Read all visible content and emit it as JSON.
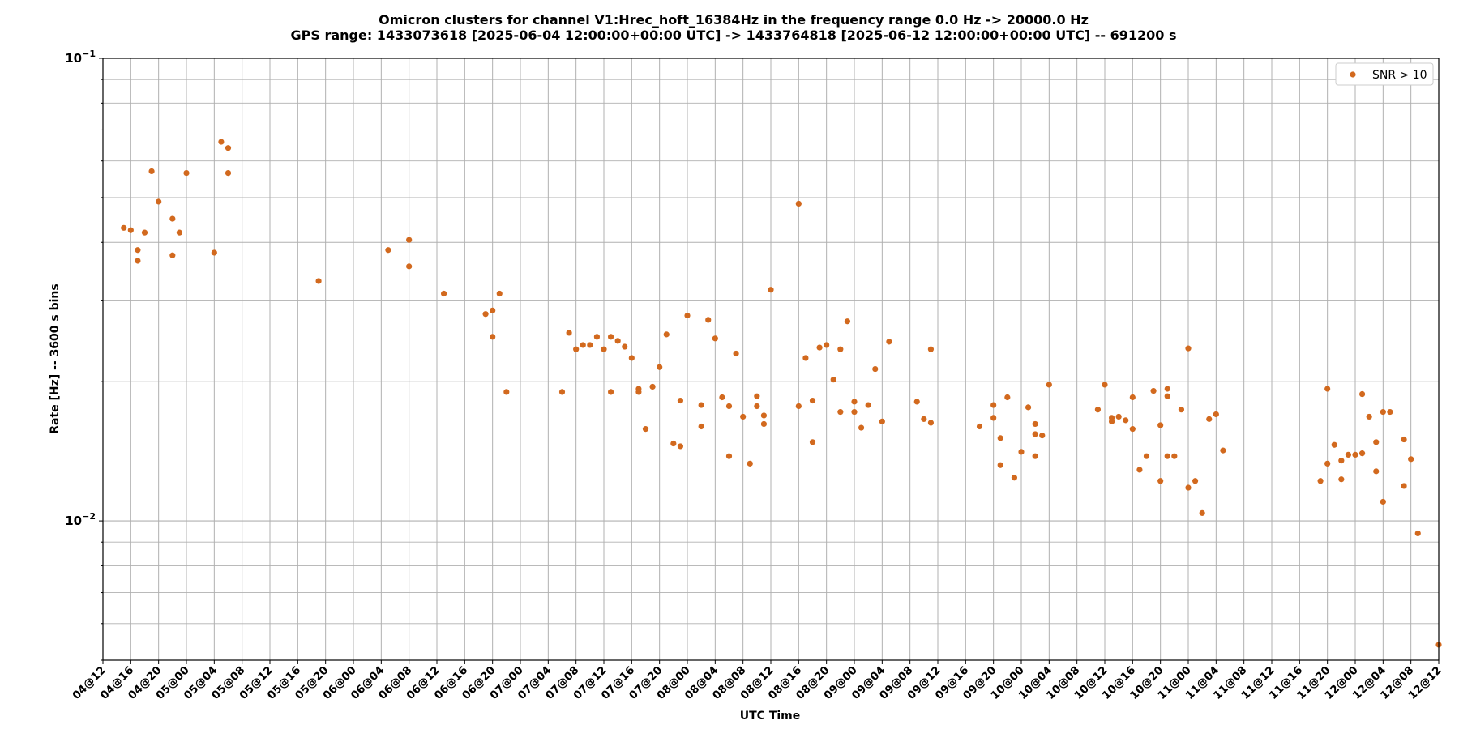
{
  "chart_data": {
    "type": "scatter",
    "title": "Omicron clusters for channel V1:Hrec_hoft_16384Hz in the frequency range 0.0 Hz -> 20000.0 Hz",
    "subtitle": "GPS range: 1433073618 [2025-06-04 12:00:00+00:00 UTC] -> 1433764818 [2025-06-12 12:00:00+00:00 UTC] -- 691200 s",
    "xlabel": "UTC Time",
    "ylabel": "Rate [Hz] -- 3600 s bins",
    "x_unit": "hours",
    "xlim": [
      "04@12",
      "12@12"
    ],
    "ylim": [
      0.005,
      0.1
    ],
    "yscale": "log",
    "grid": true,
    "legend_position": "top-right",
    "marker_color": "#d2691e",
    "x_ticks": [
      "04@12",
      "04@16",
      "04@20",
      "05@00",
      "05@04",
      "05@08",
      "05@12",
      "05@16",
      "05@20",
      "06@00",
      "06@04",
      "06@08",
      "06@12",
      "06@16",
      "06@20",
      "07@00",
      "07@04",
      "07@08",
      "07@12",
      "07@16",
      "07@20",
      "08@00",
      "08@04",
      "08@08",
      "08@12",
      "08@16",
      "08@20",
      "09@00",
      "09@04",
      "09@08",
      "09@12",
      "09@16",
      "09@20",
      "10@00",
      "10@04",
      "10@08",
      "10@12",
      "10@16",
      "10@20",
      "11@00",
      "11@04",
      "11@08",
      "11@12",
      "11@16",
      "11@20",
      "12@00",
      "12@04",
      "12@08",
      "12@12"
    ],
    "y_ticks": [
      {
        "value": 0.01,
        "base": "10",
        "exp": "−2"
      },
      {
        "value": 0.1,
        "base": "10",
        "exp": "−1"
      }
    ],
    "series": [
      {
        "name": "SNR > 10",
        "points": [
          [
            "04@15",
            0.043
          ],
          [
            "04@16",
            0.0425
          ],
          [
            "04@17",
            0.0365
          ],
          [
            "04@17",
            0.0385
          ],
          [
            "04@18",
            0.042
          ],
          [
            "04@19",
            0.057
          ],
          [
            "04@20",
            0.049
          ],
          [
            "04@22",
            0.045
          ],
          [
            "04@22",
            0.0375
          ],
          [
            "04@23",
            0.042
          ],
          [
            "05@00",
            0.0565
          ],
          [
            "05@04",
            0.038
          ],
          [
            "05@05",
            0.066
          ],
          [
            "05@06",
            0.0565
          ],
          [
            "05@06",
            0.064
          ],
          [
            "05@19",
            0.033
          ],
          [
            "06@05",
            0.0385
          ],
          [
            "06@08",
            0.0405
          ],
          [
            "06@08",
            0.0355
          ],
          [
            "06@13",
            0.031
          ],
          [
            "06@19",
            0.028
          ],
          [
            "06@20",
            0.0285
          ],
          [
            "06@20",
            0.025
          ],
          [
            "06@21",
            0.031
          ],
          [
            "06@22",
            0.019
          ],
          [
            "07@06",
            0.019
          ],
          [
            "07@07",
            0.0255
          ],
          [
            "07@08",
            0.0235
          ],
          [
            "07@09",
            0.024
          ],
          [
            "07@10",
            0.024
          ],
          [
            "07@11",
            0.025
          ],
          [
            "07@12",
            0.0235
          ],
          [
            "07@13",
            0.025
          ],
          [
            "07@13",
            0.019
          ],
          [
            "07@14",
            0.0245
          ],
          [
            "07@15",
            0.0238
          ],
          [
            "07@16",
            0.0225
          ],
          [
            "07@17",
            0.019
          ],
          [
            "07@17",
            0.0193
          ],
          [
            "07@18",
            0.0158
          ],
          [
            "07@19",
            0.0195
          ],
          [
            "07@20",
            0.0215
          ],
          [
            "07@21",
            0.0253
          ],
          [
            "07@22",
            0.0147
          ],
          [
            "07@23",
            0.0182
          ],
          [
            "07@23",
            0.0145
          ],
          [
            "08@00",
            0.0278
          ],
          [
            "08@02",
            0.0178
          ],
          [
            "08@02",
            0.016
          ],
          [
            "08@03",
            0.0272
          ],
          [
            "08@04",
            0.0248
          ],
          [
            "08@05",
            0.0185
          ],
          [
            "08@06",
            0.0177
          ],
          [
            "08@06",
            0.0138
          ],
          [
            "08@07",
            0.023
          ],
          [
            "08@08",
            0.0168
          ],
          [
            "08@09",
            0.0133
          ],
          [
            "08@10",
            0.0177
          ],
          [
            "08@10",
            0.0186
          ],
          [
            "08@11",
            0.0169
          ],
          [
            "08@11",
            0.0162
          ],
          [
            "08@12",
            0.0316
          ],
          [
            "08@16",
            0.0177
          ],
          [
            "08@16",
            0.0485
          ],
          [
            "08@17",
            0.0225
          ],
          [
            "08@18",
            0.0148
          ],
          [
            "08@18",
            0.0182
          ],
          [
            "08@19",
            0.0237
          ],
          [
            "08@20",
            0.024
          ],
          [
            "08@21",
            0.0202
          ],
          [
            "08@22",
            0.0172
          ],
          [
            "08@22",
            0.0235
          ],
          [
            "08@23",
            0.027
          ],
          [
            "09@00",
            0.0181
          ],
          [
            "09@00",
            0.0172
          ],
          [
            "09@01",
            0.0159
          ],
          [
            "09@02",
            0.0178
          ],
          [
            "09@03",
            0.0213
          ],
          [
            "09@04",
            0.0164
          ],
          [
            "09@05",
            0.0244
          ],
          [
            "09@09",
            0.0181
          ],
          [
            "09@10",
            0.0166
          ],
          [
            "09@11",
            0.0163
          ],
          [
            "09@11",
            0.0235
          ],
          [
            "09@18",
            0.016
          ],
          [
            "09@20",
            0.0178
          ],
          [
            "09@20",
            0.0167
          ],
          [
            "09@21",
            0.0132
          ],
          [
            "09@21",
            0.0151
          ],
          [
            "09@22",
            0.0185
          ],
          [
            "09@23",
            0.0124
          ],
          [
            "10@00",
            0.0141
          ],
          [
            "10@01",
            0.0176
          ],
          [
            "10@02",
            0.0138
          ],
          [
            "10@02",
            0.0154
          ],
          [
            "10@02",
            0.0162
          ],
          [
            "10@03",
            0.0153
          ],
          [
            "10@04",
            0.0197
          ],
          [
            "10@11",
            0.0174
          ],
          [
            "10@12",
            0.0197
          ],
          [
            "10@13",
            0.0167
          ],
          [
            "10@13",
            0.0164
          ],
          [
            "10@14",
            0.0168
          ],
          [
            "10@15",
            0.0165
          ],
          [
            "10@16",
            0.0185
          ],
          [
            "10@16",
            0.0158
          ],
          [
            "10@17",
            0.0129
          ],
          [
            "10@18",
            0.0138
          ],
          [
            "10@19",
            0.0191
          ],
          [
            "10@20",
            0.0122
          ],
          [
            "10@20",
            0.0161
          ],
          [
            "10@21",
            0.0186
          ],
          [
            "10@21",
            0.0193
          ],
          [
            "10@21",
            0.0138
          ],
          [
            "10@22",
            0.0138
          ],
          [
            "10@23",
            0.0174
          ],
          [
            "11@00",
            0.0236
          ],
          [
            "11@00",
            0.0118
          ],
          [
            "11@01",
            0.0122
          ],
          [
            "11@02",
            0.0104
          ],
          [
            "11@03",
            0.0166
          ],
          [
            "11@04",
            0.017
          ],
          [
            "11@05",
            0.0142
          ],
          [
            "11@19",
            0.0122
          ],
          [
            "11@20",
            0.0193
          ],
          [
            "11@20",
            0.0133
          ],
          [
            "11@21",
            0.0146
          ],
          [
            "11@22",
            0.0123
          ],
          [
            "11@22",
            0.0135
          ],
          [
            "11@23",
            0.0139
          ],
          [
            "12@00",
            0.0139
          ],
          [
            "12@01",
            0.014
          ],
          [
            "12@01",
            0.0188
          ],
          [
            "12@02",
            0.0168
          ],
          [
            "12@03",
            0.0128
          ],
          [
            "12@03",
            0.0148
          ],
          [
            "12@04",
            0.011
          ],
          [
            "12@04",
            0.0172
          ],
          [
            "12@05",
            0.0172
          ],
          [
            "12@07",
            0.0119
          ],
          [
            "12@07",
            0.015
          ],
          [
            "12@08",
            0.0136
          ],
          [
            "12@09",
            0.0094
          ],
          [
            "12@12",
            0.0054
          ]
        ]
      }
    ]
  }
}
